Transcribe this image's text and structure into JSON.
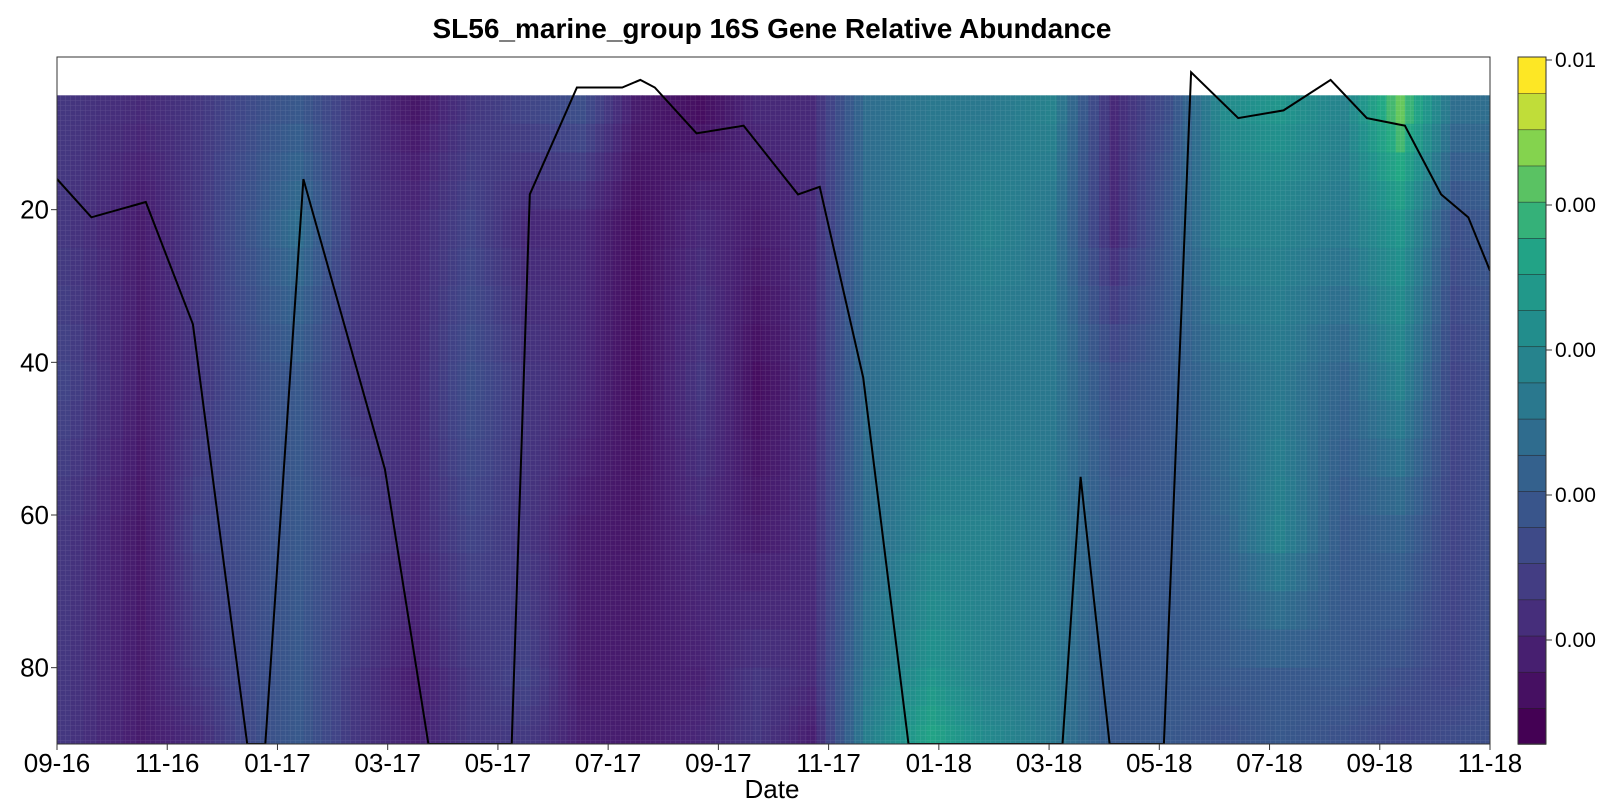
{
  "chart_data": {
    "type": "heatmap",
    "title": "SL56_marine_group 16S Gene Relative Abundance",
    "xlabel": "Date",
    "ylabel": "",
    "x_ticks": [
      "09-16",
      "11-16",
      "01-17",
      "03-17",
      "05-17",
      "07-17",
      "09-17",
      "11-17",
      "01-18",
      "03-18",
      "05-18",
      "07-18",
      "09-18",
      "11-18"
    ],
    "x_range": [
      "2016-09-01",
      "2018-11-01"
    ],
    "y_ticks": [
      20,
      40,
      60,
      80
    ],
    "y_range": [
      0,
      90
    ],
    "y_reversed": true,
    "colorbar": {
      "labels": [
        "0.01",
        "0.00",
        "0.00",
        "0.00",
        "0.00",
        "0.00"
      ],
      "colormap": "viridis",
      "levels": 19
    },
    "depth_columns": [
      {
        "date": "2016-09-01",
        "values": [
          0.2,
          0.2,
          0.25,
          0.2,
          0.2,
          0.2
        ]
      },
      {
        "date": "2016-10-15",
        "values": [
          0.15,
          0.1,
          0.1,
          0.08,
          0.1,
          0.1
        ]
      },
      {
        "date": "2016-11-15",
        "values": [
          0.2,
          0.2,
          0.2,
          0.25,
          0.2,
          0.15
        ]
      },
      {
        "date": "2016-12-20",
        "values": [
          0.3,
          0.35,
          0.3,
          0.3,
          0.3,
          0.3
        ]
      },
      {
        "date": "2017-01-10",
        "values": [
          0.35,
          0.45,
          0.35,
          0.35,
          0.35,
          0.35
        ]
      },
      {
        "date": "2017-02-10",
        "values": [
          0.2,
          0.2,
          0.2,
          0.25,
          0.2,
          0.2
        ]
      },
      {
        "date": "2017-03-15",
        "values": [
          0.08,
          0.15,
          0.15,
          0.15,
          0.1,
          0.12
        ]
      },
      {
        "date": "2017-04-15",
        "values": [
          0.2,
          0.25,
          0.3,
          0.25,
          0.2,
          0.2
        ]
      },
      {
        "date": "2017-05-15",
        "values": [
          0.25,
          0.15,
          0.2,
          0.2,
          0.25,
          0.2
        ]
      },
      {
        "date": "2017-06-15",
        "values": [
          0.3,
          0.15,
          0.15,
          0.1,
          0.1,
          0.12
        ]
      },
      {
        "date": "2017-07-15",
        "values": [
          0.1,
          0.05,
          0.05,
          0.08,
          0.1,
          0.1
        ]
      },
      {
        "date": "2017-08-20",
        "values": [
          0.05,
          0.15,
          0.2,
          0.15,
          0.12,
          0.15
        ]
      },
      {
        "date": "2017-09-20",
        "values": [
          0.15,
          0.1,
          0.05,
          0.1,
          0.2,
          0.2
        ]
      },
      {
        "date": "2017-10-20",
        "values": [
          0.15,
          0.15,
          0.15,
          0.15,
          0.15,
          0.1
        ]
      },
      {
        "date": "2017-11-20",
        "values": [
          0.45,
          0.45,
          0.45,
          0.45,
          0.5,
          0.55
        ]
      },
      {
        "date": "2017-12-25",
        "values": [
          0.5,
          0.5,
          0.5,
          0.55,
          0.65,
          0.75
        ]
      },
      {
        "date": "2018-01-25",
        "values": [
          0.5,
          0.55,
          0.5,
          0.55,
          0.55,
          0.6
        ]
      },
      {
        "date": "2018-03-01",
        "values": [
          0.55,
          0.5,
          0.5,
          0.5,
          0.5,
          0.5
        ]
      },
      {
        "date": "2018-04-05",
        "values": [
          0.15,
          0.15,
          0.3,
          0.35,
          0.35,
          0.35
        ]
      },
      {
        "date": "2018-05-05",
        "values": [
          0.3,
          0.35,
          0.35,
          0.35,
          0.35,
          0.35
        ]
      },
      {
        "date": "2018-06-05",
        "values": [
          0.6,
          0.55,
          0.45,
          0.4,
          0.35,
          0.3
        ]
      },
      {
        "date": "2018-07-05",
        "values": [
          0.65,
          0.55,
          0.5,
          0.55,
          0.35,
          0.35
        ]
      },
      {
        "date": "2018-08-10",
        "values": [
          0.55,
          0.5,
          0.4,
          0.35,
          0.35,
          0.3
        ]
      },
      {
        "date": "2018-09-10",
        "values": [
          0.85,
          0.65,
          0.55,
          0.4,
          0.3,
          0.25
        ]
      },
      {
        "date": "2018-10-10",
        "values": [
          0.45,
          0.3,
          0.25,
          0.25,
          0.25,
          0.3
        ]
      },
      {
        "date": "2018-11-01",
        "values": [
          0.45,
          0.35,
          0.3,
          0.3,
          0.3,
          0.3
        ]
      }
    ],
    "depth_levels": [
      5,
      20,
      40,
      60,
      80,
      90
    ],
    "line_series": {
      "points": [
        [
          "2016-09-01",
          16
        ],
        [
          "2016-09-20",
          21
        ],
        [
          "2016-10-20",
          19
        ],
        [
          "2016-11-15",
          35
        ],
        [
          "2016-12-15",
          90
        ],
        [
          "2016-12-25",
          90
        ],
        [
          "2017-01-15",
          16
        ],
        [
          "2017-03-01",
          54
        ],
        [
          "2017-03-25",
          90
        ],
        [
          "2017-05-10",
          90
        ],
        [
          "2017-05-20",
          18
        ],
        [
          "2017-06-15",
          4
        ],
        [
          "2017-07-10",
          4
        ],
        [
          "2017-07-20",
          3
        ],
        [
          "2017-07-28",
          4
        ],
        [
          "2017-08-20",
          10
        ],
        [
          "2017-09-15",
          9
        ],
        [
          "2017-10-15",
          18
        ],
        [
          "2017-10-27",
          17
        ],
        [
          "2017-11-20",
          42
        ],
        [
          "2017-12-15",
          90
        ],
        [
          "2018-03-10",
          90
        ],
        [
          "2018-03-20",
          55
        ],
        [
          "2018-04-05",
          90
        ],
        [
          "2018-05-05",
          90
        ],
        [
          "2018-05-20",
          2
        ],
        [
          "2018-06-15",
          8
        ],
        [
          "2018-07-10",
          7
        ],
        [
          "2018-08-05",
          3
        ],
        [
          "2018-08-25",
          8
        ],
        [
          "2018-09-15",
          9
        ],
        [
          "2018-10-05",
          18
        ],
        [
          "2018-10-20",
          21
        ],
        [
          "2018-11-01",
          28
        ]
      ]
    }
  }
}
